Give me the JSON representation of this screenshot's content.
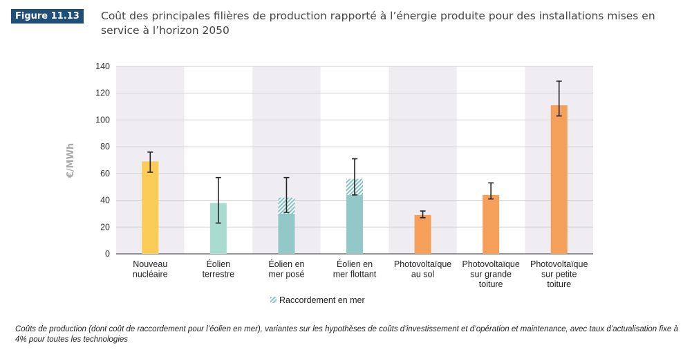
{
  "figure": {
    "badge": "Figure 11.13",
    "title": "Coût des principales filières de production rapporté à l’énergie produite pour des installations mises en service à l’horizon 2050",
    "footnote": "Coûts de production (dont coût de raccordement pour l’éolien en mer), variantes sur les hypothèses de coûts d’investissement et d’opération et maintenance, avec taux d’actualisation fixe à 4% pour toutes les technologies"
  },
  "chart_data": {
    "type": "bar",
    "ylabel": "€/MWh",
    "ylim": [
      0,
      140
    ],
    "yticks": [
      0,
      20,
      40,
      60,
      80,
      100,
      120,
      140
    ],
    "grid": true,
    "legend_position": "bottom",
    "categories": [
      [
        "Nouveau",
        "nucléaire"
      ],
      [
        "Éolien",
        "terrestre"
      ],
      [
        "Éolien en",
        "mer posé"
      ],
      [
        "Éolien en",
        "mer flottant"
      ],
      [
        "Photovoltaïque",
        "au sol"
      ],
      [
        "Photovoltaïque",
        "sur grande",
        "toiture"
      ],
      [
        "Photovoltaïque",
        "sur petite",
        "toiture"
      ]
    ],
    "series": [
      {
        "key": "production",
        "values": [
          69,
          38,
          30,
          44,
          29,
          44,
          111
        ],
        "colors": [
          "#fbcb57",
          "#a8dccf",
          "#92c9c8",
          "#92c9c8",
          "#f5a05a",
          "#f5a05a",
          "#f5a05a"
        ]
      },
      {
        "key": "raccordement",
        "name": "Raccordement en mer",
        "values": [
          0,
          0,
          12,
          12,
          0,
          0,
          0
        ],
        "color": "#7fc2c6",
        "pattern": "hatched"
      }
    ],
    "error_bars": [
      {
        "low": 61,
        "high": 76
      },
      {
        "low": 23,
        "high": 57
      },
      {
        "low": 31,
        "high": 57
      },
      {
        "low": 44,
        "high": 71
      },
      {
        "low": 27,
        "high": 32
      },
      {
        "low": 41,
        "high": 53
      },
      {
        "low": 103,
        "high": 129
      }
    ],
    "band_colors": [
      "#efedf1",
      "#ffffff"
    ]
  }
}
